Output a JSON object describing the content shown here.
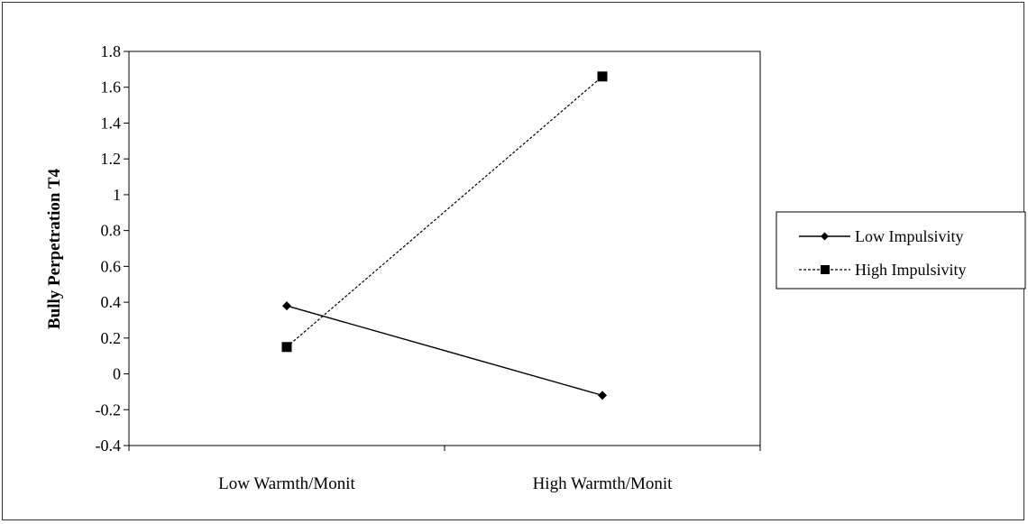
{
  "chart_data": {
    "type": "line",
    "title": "",
    "xlabel": "",
    "ylabel": "Bully Perpetration T4",
    "categories": [
      "Low Warmth/Monit",
      "High Warmth/Monit"
    ],
    "ylim": [
      -0.4,
      1.8
    ],
    "yticks": [
      "1.8",
      "1.6",
      "1.4",
      "1.2",
      "1",
      "0.8",
      "0.6",
      "0.4",
      "0.2",
      "0",
      "-0.2",
      "-0.4"
    ],
    "ytick_values": [
      1.8,
      1.6,
      1.4,
      1.2,
      1.0,
      0.8,
      0.6,
      0.4,
      0.2,
      0.0,
      -0.2,
      -0.4
    ],
    "grid": false,
    "legend_position": "right",
    "series": [
      {
        "name": "Low Impulsivity",
        "values": [
          0.38,
          -0.12
        ],
        "marker": "diamond",
        "line_style": "solid",
        "color": "#000000"
      },
      {
        "name": "High Impulsivity",
        "values": [
          0.15,
          1.66
        ],
        "marker": "square",
        "line_style": "dashed",
        "color": "#000000"
      }
    ]
  }
}
